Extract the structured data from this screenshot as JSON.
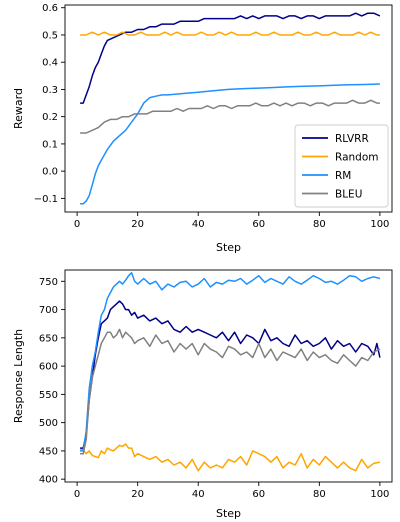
{
  "chart_data": [
    {
      "type": "line",
      "xlabel": "Step",
      "ylabel": "Reward",
      "xlim": [
        -4,
        104
      ],
      "ylim": [
        -0.15,
        0.61
      ],
      "xticks": [
        0,
        20,
        40,
        60,
        80,
        100
      ],
      "yticks": [
        -0.1,
        0.0,
        0.1,
        0.2,
        0.3,
        0.4,
        0.5,
        0.6
      ],
      "ytick_labels": [
        "−0.1",
        "0.0",
        "0.1",
        "0.2",
        "0.3",
        "0.4",
        "0.5",
        "0.6"
      ],
      "xtick_labels": [
        "0",
        "20",
        "40",
        "60",
        "80",
        "100"
      ],
      "legend": "lower-right",
      "series": [
        {
          "name": "RLVRR",
          "color": "#00008b",
          "x": [
            1,
            2,
            3,
            4,
            5,
            6,
            7,
            8,
            9,
            10,
            12,
            14,
            16,
            18,
            20,
            22,
            24,
            26,
            28,
            30,
            32,
            34,
            36,
            38,
            40,
            42,
            44,
            46,
            48,
            50,
            52,
            54,
            56,
            58,
            60,
            62,
            64,
            66,
            68,
            70,
            72,
            74,
            76,
            78,
            80,
            82,
            84,
            86,
            88,
            90,
            92,
            94,
            96,
            98,
            100
          ],
          "y": [
            0.25,
            0.25,
            0.28,
            0.31,
            0.35,
            0.38,
            0.4,
            0.43,
            0.46,
            0.48,
            0.49,
            0.5,
            0.51,
            0.51,
            0.52,
            0.52,
            0.53,
            0.53,
            0.54,
            0.54,
            0.54,
            0.55,
            0.55,
            0.55,
            0.55,
            0.56,
            0.56,
            0.56,
            0.56,
            0.56,
            0.56,
            0.57,
            0.56,
            0.57,
            0.56,
            0.57,
            0.57,
            0.57,
            0.56,
            0.57,
            0.57,
            0.56,
            0.57,
            0.57,
            0.56,
            0.57,
            0.57,
            0.57,
            0.57,
            0.57,
            0.58,
            0.57,
            0.58,
            0.58,
            0.57
          ]
        },
        {
          "name": "Random",
          "color": "#ffa500",
          "x": [
            1,
            3,
            5,
            7,
            9,
            11,
            13,
            15,
            17,
            19,
            21,
            23,
            25,
            27,
            29,
            31,
            33,
            35,
            37,
            39,
            41,
            43,
            45,
            47,
            49,
            51,
            53,
            55,
            57,
            59,
            61,
            63,
            65,
            67,
            69,
            71,
            73,
            75,
            77,
            79,
            81,
            83,
            85,
            87,
            89,
            91,
            93,
            95,
            97,
            99,
            100
          ],
          "y": [
            0.5,
            0.5,
            0.51,
            0.5,
            0.51,
            0.5,
            0.5,
            0.51,
            0.5,
            0.5,
            0.51,
            0.5,
            0.5,
            0.5,
            0.51,
            0.5,
            0.51,
            0.5,
            0.5,
            0.5,
            0.51,
            0.5,
            0.5,
            0.51,
            0.5,
            0.51,
            0.5,
            0.5,
            0.5,
            0.51,
            0.5,
            0.5,
            0.51,
            0.5,
            0.5,
            0.5,
            0.51,
            0.5,
            0.5,
            0.51,
            0.5,
            0.5,
            0.51,
            0.5,
            0.5,
            0.5,
            0.51,
            0.5,
            0.51,
            0.5,
            0.5
          ]
        },
        {
          "name": "RM",
          "color": "#1e90ff",
          "x": [
            1,
            2,
            3,
            4,
            5,
            6,
            7,
            8,
            9,
            10,
            12,
            14,
            16,
            18,
            20,
            22,
            24,
            26,
            28,
            30,
            35,
            40,
            45,
            50,
            55,
            60,
            65,
            70,
            75,
            80,
            85,
            90,
            95,
            100
          ],
          "y": [
            -0.12,
            -0.12,
            -0.11,
            -0.09,
            -0.05,
            -0.01,
            0.02,
            0.04,
            0.06,
            0.08,
            0.11,
            0.13,
            0.15,
            0.18,
            0.21,
            0.25,
            0.27,
            0.275,
            0.28,
            0.28,
            0.285,
            0.29,
            0.295,
            0.3,
            0.303,
            0.305,
            0.307,
            0.31,
            0.312,
            0.313,
            0.315,
            0.317,
            0.318,
            0.32
          ]
        },
        {
          "name": "BLEU",
          "color": "#808080",
          "x": [
            1,
            3,
            5,
            7,
            9,
            11,
            13,
            15,
            17,
            19,
            21,
            23,
            25,
            27,
            29,
            31,
            33,
            35,
            37,
            39,
            41,
            43,
            45,
            47,
            49,
            51,
            53,
            55,
            57,
            59,
            61,
            63,
            65,
            67,
            69,
            71,
            73,
            75,
            77,
            79,
            81,
            83,
            85,
            87,
            89,
            91,
            93,
            95,
            97,
            99,
            100
          ],
          "y": [
            0.14,
            0.14,
            0.15,
            0.16,
            0.18,
            0.19,
            0.19,
            0.2,
            0.2,
            0.21,
            0.21,
            0.21,
            0.22,
            0.22,
            0.22,
            0.22,
            0.23,
            0.22,
            0.23,
            0.23,
            0.23,
            0.24,
            0.23,
            0.24,
            0.24,
            0.23,
            0.24,
            0.24,
            0.24,
            0.25,
            0.24,
            0.24,
            0.25,
            0.24,
            0.25,
            0.24,
            0.25,
            0.25,
            0.24,
            0.25,
            0.25,
            0.24,
            0.25,
            0.25,
            0.25,
            0.26,
            0.25,
            0.25,
            0.26,
            0.25,
            0.25
          ]
        }
      ]
    },
    {
      "type": "line",
      "xlabel": "Step",
      "ylabel": "Response Length",
      "xlim": [
        -4,
        104
      ],
      "ylim": [
        395,
        770
      ],
      "xticks": [
        0,
        20,
        40,
        60,
        80,
        100
      ],
      "yticks": [
        400,
        450,
        500,
        550,
        600,
        650,
        700,
        750
      ],
      "ytick_labels": [
        "400",
        "450",
        "500",
        "550",
        "600",
        "650",
        "700",
        "750"
      ],
      "xtick_labels": [
        "0",
        "20",
        "40",
        "60",
        "80",
        "100"
      ],
      "series": [
        {
          "name": "RLVRR",
          "color": "#00008b",
          "x": [
            1,
            2,
            3,
            4,
            5,
            6,
            7,
            8,
            9,
            10,
            11,
            12,
            13,
            14,
            15,
            16,
            17,
            18,
            19,
            20,
            22,
            24,
            26,
            28,
            30,
            32,
            34,
            36,
            38,
            40,
            42,
            44,
            46,
            48,
            50,
            52,
            54,
            56,
            58,
            60,
            62,
            64,
            66,
            68,
            70,
            72,
            74,
            76,
            78,
            80,
            82,
            84,
            86,
            88,
            90,
            92,
            94,
            96,
            98,
            99,
            100
          ],
          "y": [
            455,
            455,
            480,
            540,
            580,
            620,
            650,
            675,
            680,
            685,
            700,
            705,
            710,
            715,
            710,
            700,
            700,
            690,
            695,
            685,
            690,
            680,
            685,
            675,
            680,
            665,
            660,
            670,
            660,
            665,
            660,
            655,
            650,
            660,
            645,
            660,
            640,
            655,
            650,
            640,
            665,
            645,
            650,
            640,
            635,
            655,
            640,
            645,
            635,
            640,
            650,
            630,
            645,
            635,
            640,
            625,
            640,
            635,
            620,
            640,
            615
          ]
        },
        {
          "name": "Random",
          "color": "#ffa500",
          "x": [
            1,
            2,
            3,
            4,
            5,
            6,
            7,
            8,
            9,
            10,
            11,
            12,
            13,
            14,
            15,
            16,
            17,
            18,
            19,
            20,
            22,
            24,
            26,
            28,
            30,
            32,
            34,
            36,
            38,
            40,
            42,
            44,
            46,
            48,
            50,
            52,
            54,
            56,
            58,
            60,
            62,
            64,
            66,
            68,
            70,
            72,
            74,
            76,
            78,
            80,
            82,
            84,
            86,
            88,
            90,
            92,
            94,
            96,
            98,
            100
          ],
          "y": [
            452,
            452,
            445,
            450,
            442,
            440,
            438,
            450,
            445,
            455,
            452,
            450,
            455,
            460,
            458,
            462,
            455,
            455,
            440,
            445,
            440,
            435,
            440,
            430,
            435,
            425,
            430,
            420,
            435,
            415,
            430,
            420,
            425,
            420,
            435,
            430,
            440,
            425,
            450,
            445,
            440,
            430,
            440,
            420,
            430,
            425,
            445,
            420,
            435,
            425,
            440,
            430,
            420,
            430,
            420,
            415,
            435,
            420,
            428,
            430
          ]
        },
        {
          "name": "RM",
          "color": "#1e90ff",
          "x": [
            1,
            2,
            3,
            4,
            5,
            6,
            7,
            8,
            9,
            10,
            11,
            12,
            13,
            14,
            15,
            16,
            17,
            18,
            19,
            20,
            22,
            24,
            26,
            28,
            30,
            32,
            34,
            36,
            38,
            40,
            42,
            44,
            46,
            48,
            50,
            52,
            54,
            56,
            58,
            60,
            62,
            64,
            66,
            68,
            70,
            72,
            74,
            76,
            78,
            80,
            82,
            84,
            86,
            88,
            90,
            92,
            94,
            96,
            98,
            100
          ],
          "y": [
            450,
            450,
            485,
            560,
            600,
            625,
            660,
            690,
            700,
            720,
            730,
            740,
            745,
            750,
            745,
            752,
            760,
            765,
            750,
            745,
            755,
            745,
            750,
            735,
            745,
            740,
            748,
            750,
            740,
            745,
            755,
            740,
            748,
            745,
            752,
            750,
            755,
            745,
            752,
            760,
            748,
            755,
            750,
            745,
            758,
            750,
            745,
            752,
            760,
            755,
            748,
            750,
            745,
            752,
            760,
            758,
            750,
            755,
            758,
            755
          ]
        },
        {
          "name": "BLEU",
          "color": "#808080",
          "x": [
            1,
            2,
            3,
            4,
            5,
            6,
            7,
            8,
            9,
            10,
            11,
            12,
            13,
            14,
            15,
            16,
            17,
            18,
            19,
            20,
            22,
            24,
            26,
            28,
            30,
            32,
            34,
            36,
            38,
            40,
            42,
            44,
            46,
            48,
            50,
            52,
            54,
            56,
            58,
            60,
            62,
            64,
            66,
            68,
            70,
            72,
            74,
            76,
            78,
            80,
            82,
            84,
            86,
            88,
            90,
            92,
            94,
            96,
            98,
            100
          ],
          "y": [
            445,
            445,
            470,
            540,
            580,
            600,
            620,
            640,
            650,
            660,
            660,
            650,
            655,
            665,
            650,
            660,
            655,
            650,
            640,
            645,
            650,
            635,
            655,
            640,
            645,
            625,
            640,
            630,
            640,
            620,
            640,
            630,
            625,
            615,
            635,
            630,
            620,
            625,
            615,
            640,
            615,
            630,
            610,
            625,
            620,
            615,
            630,
            610,
            625,
            615,
            620,
            610,
            605,
            620,
            610,
            600,
            615,
            610,
            625,
            630
          ]
        }
      ]
    }
  ]
}
